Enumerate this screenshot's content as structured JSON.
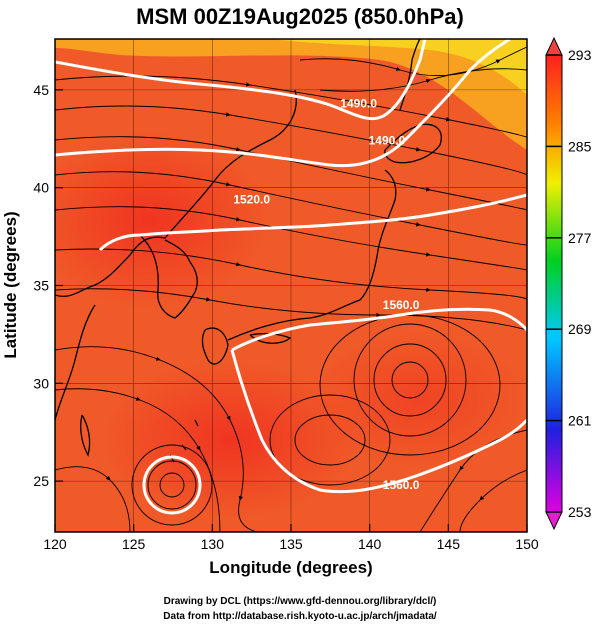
{
  "title": "MSM 00Z19Aug2025 (850.0hPa)",
  "xlabel": "Longitude (degrees)",
  "ylabel": "Latitude  (degrees)",
  "credits": {
    "line1": "Drawing by DCL (https://www.gfd-dennou.org/library/dcl/)",
    "line2": "Data from http://database.rish.kyoto-u.ac.jp/arch/jmadata/"
  },
  "chart_data": {
    "type": "heatmap",
    "xlim": [
      120,
      150
    ],
    "ylim": [
      22.4,
      47.6
    ],
    "x_ticks": [
      120,
      125,
      130,
      135,
      140,
      145,
      150
    ],
    "y_ticks": [
      25,
      30,
      35,
      40,
      45
    ],
    "grid": true,
    "colorbar": {
      "min": 253,
      "max": 293,
      "ticks": [
        253,
        261,
        269,
        277,
        285,
        293
      ],
      "colors": [
        "#e000e0",
        "#2020e0",
        "#00c8ff",
        "#00d020",
        "#f0f000",
        "#ff8000",
        "#ff2020"
      ]
    },
    "contour_labels": [
      {
        "text": "1490.0",
        "lon": 139.3,
        "lat": 44.1
      },
      {
        "text": "1490.0",
        "lon": 141.1,
        "lat": 42.2
      },
      {
        "text": "1520.0",
        "lon": 132.5,
        "lat": 39.2
      },
      {
        "text": "1560.0",
        "lon": 142.0,
        "lat": 33.8
      },
      {
        "text": "1560.0",
        "lon": 142.0,
        "lat": 24.6
      }
    ]
  }
}
